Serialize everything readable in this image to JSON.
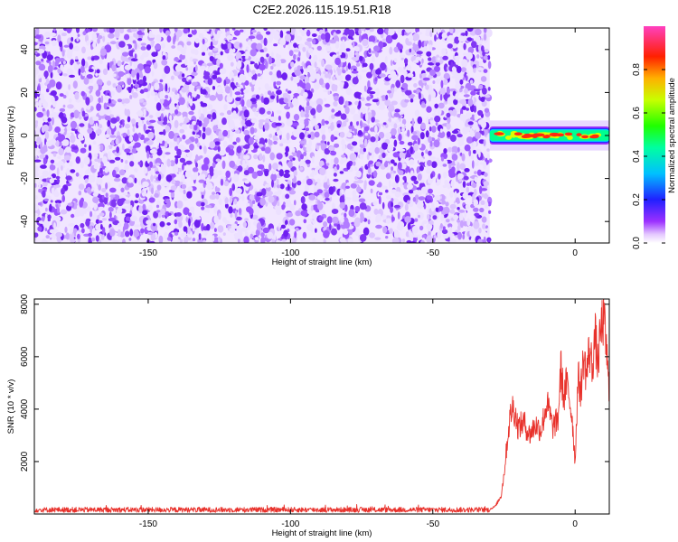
{
  "chart_data": [
    {
      "type": "heatmap",
      "title": "C2E2.2026.115.19.51.R18",
      "xlabel": "Height of straight line (km)",
      "ylabel": "Frequency (Hz)",
      "xlim": [
        -190,
        12
      ],
      "ylim": [
        -50,
        50
      ],
      "xticks": [
        "-150",
        "-100",
        "-50",
        "0"
      ],
      "xtick_values": [
        -150,
        -100,
        -50,
        0
      ],
      "yticks": [
        "40",
        "20",
        "0",
        "-20",
        "-40"
      ],
      "ytick_values": [
        40,
        20,
        0,
        -20,
        -40
      ],
      "noise_region_x": [
        -190,
        -30
      ],
      "signal_region_x": [
        -30,
        12
      ],
      "signal_frequency_band": [
        -3,
        3
      ],
      "grid": false,
      "colorbar": {
        "label": "Normalized spectral amplitude",
        "range": [
          0.0,
          1.0
        ],
        "ticks": [
          "0.0",
          "0.2",
          "0.4",
          "0.6",
          "0.8"
        ],
        "tick_values": [
          0.0,
          0.2,
          0.4,
          0.6,
          0.8
        ],
        "colormap": "rainbow (white-violet-blue-cyan-green-yellow-red-magenta)"
      }
    },
    {
      "type": "line",
      "xlabel": "Height of straight line (km)",
      "ylabel": "SNR (10 * v/v)",
      "xlim": [
        -190,
        12
      ],
      "ylim": [
        0,
        8200
      ],
      "xticks": [
        "-150",
        "-100",
        "-50",
        "0"
      ],
      "xtick_values": [
        -150,
        -100,
        -50,
        0
      ],
      "yticks": [
        "8000",
        "6000",
        "4000",
        "2000"
      ],
      "ytick_values": [
        8000,
        6000,
        4000,
        2000
      ],
      "line_color": "#e8302a",
      "grid": false,
      "series": [
        {
          "x": [
            -190,
            -150,
            -100,
            -60,
            -40,
            -30,
            -28,
            -26,
            -25,
            -24,
            -23,
            -22,
            -21,
            -20,
            -18,
            -16,
            -14,
            -12,
            -10,
            -9,
            -8,
            -6,
            -5,
            -4,
            -3,
            -2,
            -1,
            0,
            1,
            2,
            3,
            4,
            5,
            6,
            7,
            8,
            9,
            10,
            11,
            12
          ],
          "y": [
            150,
            160,
            140,
            150,
            160,
            180,
            300,
            700,
            1500,
            2600,
            3600,
            4100,
            3800,
            3300,
            3500,
            3000,
            3400,
            3200,
            4200,
            3900,
            3300,
            3600,
            5600,
            4400,
            5000,
            4400,
            3600,
            2000,
            5200,
            4700,
            6000,
            5300,
            6300,
            5600,
            6800,
            5700,
            7000,
            7500,
            6300,
            4400
          ]
        }
      ]
    }
  ]
}
